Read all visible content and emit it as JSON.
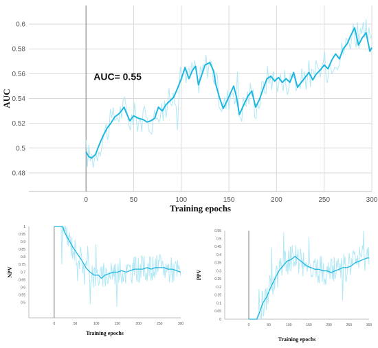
{
  "chart_data": [
    {
      "type": "line",
      "title": "",
      "xlabel": "Training epochs",
      "ylabel": "AUC",
      "annotation": "AUC= 0.55",
      "xlim": [
        -60,
        300
      ],
      "ylim": [
        0.465,
        0.615
      ],
      "xticks": [
        "0",
        "50",
        "100",
        "150",
        "200",
        "250",
        "300"
      ],
      "yticks": [
        "0.48",
        "0.5",
        "0.52",
        "0.54",
        "0.56",
        "0.58",
        "0.6"
      ],
      "grid": true,
      "vertical_marker_x": 0,
      "colors": {
        "smooth": "#1fb6e0",
        "raw": "#a8e6f5",
        "grid": "#d9d9d9"
      },
      "series": [
        {
          "values": [
            [
              0,
              0.497
            ],
            [
              3,
              0.493
            ],
            [
              6,
              0.492
            ],
            [
              10,
              0.495
            ],
            [
              14,
              0.503
            ],
            [
              18,
              0.51
            ],
            [
              22,
              0.516
            ],
            [
              26,
              0.52
            ],
            [
              30,
              0.525
            ],
            [
              35,
              0.528
            ],
            [
              40,
              0.533
            ],
            [
              42,
              0.529
            ],
            [
              46,
              0.522
            ],
            [
              50,
              0.526
            ],
            [
              55,
              0.524
            ],
            [
              60,
              0.523
            ],
            [
              64,
              0.521
            ],
            [
              68,
              0.522
            ],
            [
              72,
              0.524
            ],
            [
              76,
              0.533
            ],
            [
              80,
              0.53
            ],
            [
              84,
              0.535
            ],
            [
              88,
              0.538
            ],
            [
              92,
              0.541
            ],
            [
              96,
              0.548
            ],
            [
              100,
              0.556
            ],
            [
              104,
              0.565
            ],
            [
              108,
              0.556
            ],
            [
              112,
              0.563
            ],
            [
              115,
              0.566
            ],
            [
              118,
              0.551
            ],
            [
              121,
              0.558
            ],
            [
              125,
              0.567
            ],
            [
              130,
              0.569
            ],
            [
              134,
              0.562
            ],
            [
              136,
              0.552
            ],
            [
              140,
              0.541
            ],
            [
              144,
              0.532
            ],
            [
              148,
              0.538
            ],
            [
              152,
              0.545
            ],
            [
              155,
              0.55
            ],
            [
              158,
              0.541
            ],
            [
              161,
              0.527
            ],
            [
              165,
              0.534
            ],
            [
              170,
              0.542
            ],
            [
              174,
              0.546
            ],
            [
              178,
              0.533
            ],
            [
              182,
              0.539
            ],
            [
              186,
              0.548
            ],
            [
              190,
              0.556
            ],
            [
              194,
              0.558
            ],
            [
              198,
              0.554
            ],
            [
              202,
              0.557
            ],
            [
              206,
              0.553
            ],
            [
              210,
              0.556
            ],
            [
              214,
              0.553
            ],
            [
              218,
              0.561
            ],
            [
              222,
              0.549
            ],
            [
              226,
              0.553
            ],
            [
              230,
              0.557
            ],
            [
              234,
              0.561
            ],
            [
              238,
              0.555
            ],
            [
              242,
              0.56
            ],
            [
              246,
              0.563
            ],
            [
              250,
              0.567
            ],
            [
              254,
              0.564
            ],
            [
              258,
              0.571
            ],
            [
              262,
              0.576
            ],
            [
              266,
              0.572
            ],
            [
              270,
              0.58
            ],
            [
              274,
              0.584
            ],
            [
              278,
              0.591
            ],
            [
              282,
              0.597
            ],
            [
              286,
              0.583
            ],
            [
              290,
              0.589
            ],
            [
              294,
              0.593
            ],
            [
              298,
              0.578
            ],
            [
              300,
              0.581
            ]
          ]
        }
      ]
    },
    {
      "type": "line",
      "title": "",
      "xlabel": "Training epochs",
      "ylabel": "NPV",
      "xlim": [
        -60,
        300
      ],
      "ylim": [
        0.4,
        1.0
      ],
      "xticks": [
        "0",
        "50",
        "100",
        "150",
        "200",
        "250",
        "300"
      ],
      "yticks": [
        "0.5",
        "0.55",
        "0.6",
        "0.65",
        "0.7",
        "0.75",
        "0.8",
        "0.85",
        "0.9",
        "0.95",
        "1"
      ],
      "grid": false,
      "vertical_marker_x": 0,
      "colors": {
        "smooth": "#1fb6e0",
        "raw": "#a8e6f5"
      },
      "series": [
        {
          "values": [
            [
              0,
              1.0
            ],
            [
              10,
              1.0
            ],
            [
              20,
              1.0
            ],
            [
              25,
              0.96
            ],
            [
              35,
              0.91
            ],
            [
              45,
              0.86
            ],
            [
              55,
              0.82
            ],
            [
              65,
              0.78
            ],
            [
              75,
              0.73
            ],
            [
              85,
              0.7
            ],
            [
              95,
              0.68
            ],
            [
              105,
              0.68
            ],
            [
              112,
              0.66
            ],
            [
              120,
              0.68
            ],
            [
              130,
              0.69
            ],
            [
              140,
              0.7
            ],
            [
              150,
              0.7
            ],
            [
              160,
              0.71
            ],
            [
              170,
              0.7
            ],
            [
              180,
              0.71
            ],
            [
              190,
              0.72
            ],
            [
              200,
              0.72
            ],
            [
              210,
              0.72
            ],
            [
              220,
              0.73
            ],
            [
              230,
              0.72
            ],
            [
              240,
              0.73
            ],
            [
              250,
              0.73
            ],
            [
              260,
              0.73
            ],
            [
              270,
              0.72
            ],
            [
              280,
              0.72
            ],
            [
              290,
              0.71
            ],
            [
              300,
              0.7
            ]
          ]
        }
      ]
    },
    {
      "type": "line",
      "title": "",
      "xlabel": "Training epochs",
      "ylabel": "PPV",
      "xlim": [
        -60,
        300
      ],
      "ylim": [
        0.0,
        0.55
      ],
      "xticks": [
        "0",
        "50",
        "100",
        "150",
        "200",
        "250",
        "300"
      ],
      "yticks": [
        "0",
        "0.05",
        "0.1",
        "0.15",
        "0.2",
        "0.25",
        "0.3",
        "0.35",
        "0.4",
        "0.45",
        "0.5",
        "0.55"
      ],
      "grid": false,
      "vertical_marker_x": 0,
      "colors": {
        "smooth": "#1fb6e0",
        "raw": "#a8e6f5"
      },
      "series": [
        {
          "values": [
            [
              0,
              0.0
            ],
            [
              10,
              0.0
            ],
            [
              20,
              0.0
            ],
            [
              25,
              0.03
            ],
            [
              35,
              0.1
            ],
            [
              45,
              0.14
            ],
            [
              55,
              0.2
            ],
            [
              65,
              0.25
            ],
            [
              75,
              0.3
            ],
            [
              85,
              0.33
            ],
            [
              95,
              0.36
            ],
            [
              105,
              0.37
            ],
            [
              115,
              0.39
            ],
            [
              125,
              0.37
            ],
            [
              135,
              0.35
            ],
            [
              145,
              0.33
            ],
            [
              155,
              0.32
            ],
            [
              165,
              0.31
            ],
            [
              175,
              0.31
            ],
            [
              185,
              0.3
            ],
            [
              195,
              0.3
            ],
            [
              205,
              0.29
            ],
            [
              215,
              0.3
            ],
            [
              225,
              0.31
            ],
            [
              235,
              0.32
            ],
            [
              245,
              0.32
            ],
            [
              255,
              0.33
            ],
            [
              265,
              0.35
            ],
            [
              275,
              0.36
            ],
            [
              285,
              0.37
            ],
            [
              295,
              0.38
            ],
            [
              300,
              0.38
            ]
          ]
        }
      ]
    }
  ]
}
